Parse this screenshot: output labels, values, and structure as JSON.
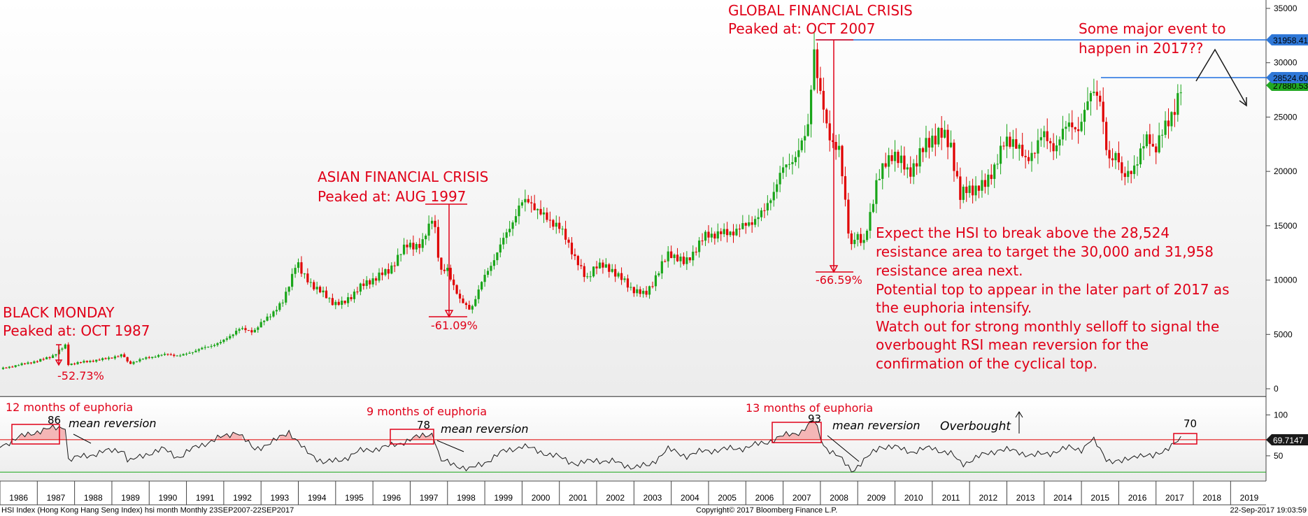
{
  "chart_data": {
    "type": "candlestick",
    "subtype": "monthly price with RSI subpanel",
    "price_axis": {
      "ylim": [
        0,
        35000
      ],
      "ticks": [
        0,
        5000,
        10000,
        15000,
        20000,
        25000,
        30000,
        35000
      ],
      "tick_labels": [
        "0",
        "5000",
        "10000",
        "15000",
        "20000",
        "25000",
        "30000",
        "35000"
      ]
    },
    "x_axis": {
      "labels": [
        "1986",
        "1987",
        "1988",
        "1989",
        "1990",
        "1991",
        "1992",
        "1993",
        "1994",
        "1995",
        "1996",
        "1997",
        "1998",
        "1999",
        "2000",
        "2001",
        "2002",
        "2003",
        "2004",
        "2005",
        "2006",
        "2007",
        "2008",
        "2009",
        "2010",
        "2011",
        "2012",
        "2013",
        "2014",
        "2015",
        "2016",
        "2017",
        "2018",
        "2019"
      ]
    },
    "rsi_axis": {
      "ylim": [
        20,
        120
      ],
      "ticks": [
        50,
        100
      ],
      "tick_labels": [
        "50",
        "100"
      ],
      "upper_line": 69.7147,
      "lower_line": 30
    },
    "price_series": [
      {
        "t": 1986.0,
        "v": 1820
      },
      {
        "t": 1986.5,
        "v": 2200
      },
      {
        "t": 1987.0,
        "v": 2550
      },
      {
        "t": 1987.4,
        "v": 3000
      },
      {
        "t": 1987.75,
        "v": 3950
      },
      {
        "t": 1987.83,
        "v": 2250
      },
      {
        "t": 1988.2,
        "v": 2450
      },
      {
        "t": 1988.7,
        "v": 2680
      },
      {
        "t": 1989.3,
        "v": 3100
      },
      {
        "t": 1989.45,
        "v": 2300
      },
      {
        "t": 1989.9,
        "v": 2830
      },
      {
        "t": 1990.5,
        "v": 3200
      },
      {
        "t": 1990.8,
        "v": 3000
      },
      {
        "t": 1991.5,
        "v": 3800
      },
      {
        "t": 1991.95,
        "v": 4300
      },
      {
        "t": 1992.4,
        "v": 5500
      },
      {
        "t": 1992.8,
        "v": 5300
      },
      {
        "t": 1993.3,
        "v": 7000
      },
      {
        "t": 1993.6,
        "v": 8000
      },
      {
        "t": 1993.95,
        "v": 11800
      },
      {
        "t": 1994.1,
        "v": 10500
      },
      {
        "t": 1994.5,
        "v": 9200
      },
      {
        "t": 1994.95,
        "v": 7900
      },
      {
        "t": 1995.2,
        "v": 7800
      },
      {
        "t": 1995.6,
        "v": 9200
      },
      {
        "t": 1995.95,
        "v": 10000
      },
      {
        "t": 1996.4,
        "v": 10800
      },
      {
        "t": 1996.95,
        "v": 13400
      },
      {
        "t": 1997.3,
        "v": 13000
      },
      {
        "t": 1997.62,
        "v": 16300
      },
      {
        "t": 1997.8,
        "v": 10600
      },
      {
        "t": 1998.0,
        "v": 11000
      },
      {
        "t": 1998.35,
        "v": 8000
      },
      {
        "t": 1998.62,
        "v": 7300
      },
      {
        "t": 1998.95,
        "v": 10000
      },
      {
        "t": 1999.4,
        "v": 13000
      },
      {
        "t": 1999.95,
        "v": 16900
      },
      {
        "t": 2000.2,
        "v": 17400
      },
      {
        "t": 2000.5,
        "v": 16000
      },
      {
        "t": 2000.95,
        "v": 15100
      },
      {
        "t": 2001.3,
        "v": 13000
      },
      {
        "t": 2001.72,
        "v": 9950
      },
      {
        "t": 2001.95,
        "v": 11400
      },
      {
        "t": 2002.4,
        "v": 11000
      },
      {
        "t": 2002.9,
        "v": 9300
      },
      {
        "t": 2003.3,
        "v": 8600
      },
      {
        "t": 2003.7,
        "v": 11000
      },
      {
        "t": 2003.95,
        "v": 12600
      },
      {
        "t": 2004.35,
        "v": 11500
      },
      {
        "t": 2004.95,
        "v": 14200
      },
      {
        "t": 2005.5,
        "v": 14300
      },
      {
        "t": 2005.95,
        "v": 14900
      },
      {
        "t": 2006.5,
        "v": 16300
      },
      {
        "t": 2006.95,
        "v": 19900
      },
      {
        "t": 2007.4,
        "v": 21800
      },
      {
        "t": 2007.65,
        "v": 23500
      },
      {
        "t": 2007.83,
        "v": 31600
      },
      {
        "t": 2007.95,
        "v": 27800
      },
      {
        "t": 2008.2,
        "v": 23500
      },
      {
        "t": 2008.5,
        "v": 22000
      },
      {
        "t": 2008.8,
        "v": 13000
      },
      {
        "t": 2008.95,
        "v": 14400
      },
      {
        "t": 2009.15,
        "v": 13000
      },
      {
        "t": 2009.5,
        "v": 19000
      },
      {
        "t": 2009.95,
        "v": 21900
      },
      {
        "t": 2010.35,
        "v": 19800
      },
      {
        "t": 2010.95,
        "v": 23000
      },
      {
        "t": 2011.2,
        "v": 23500
      },
      {
        "t": 2011.5,
        "v": 22400
      },
      {
        "t": 2011.75,
        "v": 17600
      },
      {
        "t": 2011.95,
        "v": 18400
      },
      {
        "t": 2012.4,
        "v": 18600
      },
      {
        "t": 2012.95,
        "v": 22600
      },
      {
        "t": 2013.2,
        "v": 23000
      },
      {
        "t": 2013.5,
        "v": 20800
      },
      {
        "t": 2013.95,
        "v": 23300
      },
      {
        "t": 2014.3,
        "v": 22200
      },
      {
        "t": 2014.7,
        "v": 24700
      },
      {
        "t": 2014.95,
        "v": 23600
      },
      {
        "t": 2015.3,
        "v": 28100
      },
      {
        "t": 2015.5,
        "v": 26300
      },
      {
        "t": 2015.7,
        "v": 21000
      },
      {
        "t": 2015.95,
        "v": 21900
      },
      {
        "t": 2016.1,
        "v": 19100
      },
      {
        "t": 2016.5,
        "v": 21000
      },
      {
        "t": 2016.8,
        "v": 23300
      },
      {
        "t": 2016.95,
        "v": 22000
      },
      {
        "t": 2017.3,
        "v": 24300
      },
      {
        "t": 2017.7,
        "v": 27800
      }
    ],
    "rsi_series": [
      {
        "t": 1986.0,
        "v": 62
      },
      {
        "t": 1986.5,
        "v": 72
      },
      {
        "t": 1987.0,
        "v": 80
      },
      {
        "t": 1987.5,
        "v": 84
      },
      {
        "t": 1987.75,
        "v": 86
      },
      {
        "t": 1987.83,
        "v": 45
      },
      {
        "t": 1988.3,
        "v": 50
      },
      {
        "t": 1988.8,
        "v": 55
      },
      {
        "t": 1989.3,
        "v": 58
      },
      {
        "t": 1989.45,
        "v": 42
      },
      {
        "t": 1989.9,
        "v": 52
      },
      {
        "t": 1990.4,
        "v": 58
      },
      {
        "t": 1990.8,
        "v": 48
      },
      {
        "t": 1991.3,
        "v": 62
      },
      {
        "t": 1991.8,
        "v": 70
      },
      {
        "t": 1992.35,
        "v": 80
      },
      {
        "t": 1992.8,
        "v": 58
      },
      {
        "t": 1993.3,
        "v": 66
      },
      {
        "t": 1993.75,
        "v": 80
      },
      {
        "t": 1994.2,
        "v": 55
      },
      {
        "t": 1994.7,
        "v": 42
      },
      {
        "t": 1995.1,
        "v": 44
      },
      {
        "t": 1995.6,
        "v": 55
      },
      {
        "t": 1996.0,
        "v": 58
      },
      {
        "t": 1996.5,
        "v": 62
      },
      {
        "t": 1997.0,
        "v": 70
      },
      {
        "t": 1997.62,
        "v": 78
      },
      {
        "t": 1997.8,
        "v": 44
      },
      {
        "t": 1998.3,
        "v": 38
      },
      {
        "t": 1998.6,
        "v": 33
      },
      {
        "t": 1999.0,
        "v": 42
      },
      {
        "t": 1999.5,
        "v": 55
      },
      {
        "t": 2000.0,
        "v": 62
      },
      {
        "t": 2000.5,
        "v": 55
      },
      {
        "t": 2001.0,
        "v": 48
      },
      {
        "t": 2001.5,
        "v": 40
      },
      {
        "t": 2002.0,
        "v": 45
      },
      {
        "t": 2002.5,
        "v": 42
      },
      {
        "t": 2003.0,
        "v": 36
      },
      {
        "t": 2003.4,
        "v": 38
      },
      {
        "t": 2003.9,
        "v": 58
      },
      {
        "t": 2004.4,
        "v": 50
      },
      {
        "t": 2004.9,
        "v": 56
      },
      {
        "t": 2005.5,
        "v": 58
      },
      {
        "t": 2006.0,
        "v": 60
      },
      {
        "t": 2006.5,
        "v": 66
      },
      {
        "t": 2007.0,
        "v": 74
      },
      {
        "t": 2007.5,
        "v": 80
      },
      {
        "t": 2007.83,
        "v": 93
      },
      {
        "t": 2008.1,
        "v": 62
      },
      {
        "t": 2008.5,
        "v": 48
      },
      {
        "t": 2008.85,
        "v": 32
      },
      {
        "t": 2009.2,
        "v": 45
      },
      {
        "t": 2009.6,
        "v": 62
      },
      {
        "t": 2010.0,
        "v": 60
      },
      {
        "t": 2010.5,
        "v": 55
      },
      {
        "t": 2011.0,
        "v": 60
      },
      {
        "t": 2011.5,
        "v": 52
      },
      {
        "t": 2011.8,
        "v": 40
      },
      {
        "t": 2012.2,
        "v": 48
      },
      {
        "t": 2012.8,
        "v": 58
      },
      {
        "t": 2013.3,
        "v": 55
      },
      {
        "t": 2013.7,
        "v": 50
      },
      {
        "t": 2014.2,
        "v": 54
      },
      {
        "t": 2014.7,
        "v": 60
      },
      {
        "t": 2015.0,
        "v": 58
      },
      {
        "t": 2015.3,
        "v": 70
      },
      {
        "t": 2015.7,
        "v": 45
      },
      {
        "t": 2016.1,
        "v": 42
      },
      {
        "t": 2016.5,
        "v": 52
      },
      {
        "t": 2016.9,
        "v": 48
      },
      {
        "t": 2017.3,
        "v": 60
      },
      {
        "t": 2017.7,
        "v": 70
      }
    ],
    "price_labels": {
      "level_high": "31958.41",
      "level_resistance": "28524.60",
      "last_price": "27880.53"
    },
    "rsi_label": "69.7147",
    "annotations": {
      "black_monday_title": "BLACK MONDAY",
      "black_monday_peak": "Peaked at: OCT 1987",
      "black_monday_drop": "-52.73%",
      "asian_title": "ASIAN FINANCIAL CRISIS",
      "asian_peak": "Peaked at: AUG 1997",
      "asian_drop": "-61.09%",
      "gfc_title": "GLOBAL FINANCIAL CRISIS",
      "gfc_peak": "Peaked at: OCT 2007",
      "gfc_drop": "-66.59%",
      "event_line1": "Some major event to",
      "event_line2": "happen in 2017??",
      "outlook": [
        "Expect the HSI to break above the 28,524",
        "resistance area to target the 30,000 and 31,958",
        "resistance area next.",
        "Potential top to appear in the later part of 2017 as",
        "the euphoria intensify.",
        "Watch out for strong monthly selloff to signal the",
        "overbought RSI mean reversion for the",
        "confirmation of the cyclical top."
      ],
      "rsi_euphoria_1": "12 months of euphoria",
      "rsi_peak_1": "86",
      "rsi_mr_1": "mean reversion",
      "rsi_euphoria_2": "9 months of euphoria",
      "rsi_peak_2": "78",
      "rsi_mr_2": "mean reversion",
      "rsi_euphoria_3": "13 months of euphoria",
      "rsi_peak_3": "93",
      "rsi_mr_3": "mean reversion",
      "rsi_overbought": "Overbought",
      "rsi_now": "70"
    },
    "colors": {
      "up": "#19a519",
      "down": "#e00000",
      "annotation": "#e00018",
      "resistance": "#1f6fe0",
      "rsi_line": "#1a1a1a",
      "rsi_upper": "#e00000",
      "rsi_lower": "#19a519",
      "rsi_fill": "#f4b6b6"
    }
  },
  "footer": {
    "left": "HSI Index (Hong Kong Hang Seng Index) hsi month  Monthly 23SEP2007-22SEP2017",
    "center": "Copyright© 2017 Bloomberg Finance L.P.",
    "right": "22-Sep-2017 19:03:59"
  }
}
